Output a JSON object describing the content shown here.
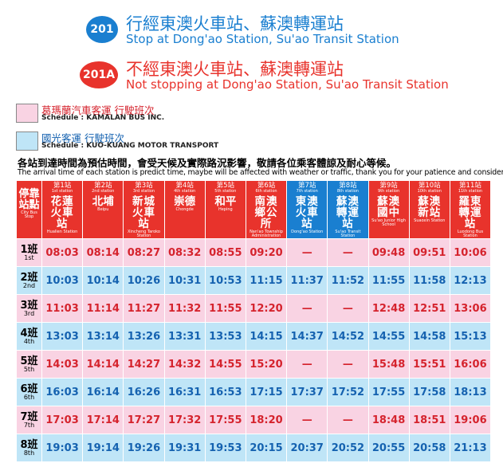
{
  "routes": [
    {
      "badge": "201",
      "zh": "行經東澳火車站、蘇澳轉運站",
      "en": "Stop at Dong'ao Station, Su'ao Transit Station",
      "color": "#1a7fd0"
    },
    {
      "badge": "201A",
      "zh": "不經東澳火車站、蘇澳轉運站",
      "en": "Not stopping at Dong'ao Station, Su'ao Transit Station",
      "color": "#e8332c"
    }
  ],
  "legend": [
    {
      "zh": "葛瑪蘭汽車客運 行駛班次",
      "en": "Schedule : KAMALAN BUS INC.",
      "color": "#f9d3e3",
      "text_color": "#d5232d"
    },
    {
      "zh": "國光客運 行駛班次",
      "en": "Schedule : KUO-KUANG MOTOR TRANSPORT",
      "color": "#bfe5f7",
      "text_color": "#1562b0"
    }
  ],
  "notice": {
    "zh": "各站到達時間為預估時間，會受天候及實際路況影響，敬請各位乘客體諒及耐心等候。",
    "en": "The arrival time of each station is predict time, maybe will be affected with weather or traffic, thank you for your patience and consideration."
  },
  "table": {
    "corner": {
      "zh": "停靠站點",
      "en": "City Bus Stop"
    },
    "stations": [
      {
        "stop": "第1站",
        "stop_en": "1st station",
        "zh": "花蓮火車站",
        "en": "Hualien Station",
        "color": "#e8332c"
      },
      {
        "stop": "第2站",
        "stop_en": "2nd station",
        "zh": "北埔",
        "en": "Beipu",
        "color": "#e8332c"
      },
      {
        "stop": "第3站",
        "stop_en": "3rd station",
        "zh": "新城火車站",
        "en": "Xincheng Taroko Station",
        "color": "#e8332c"
      },
      {
        "stop": "第4站",
        "stop_en": "4th station",
        "zh": "崇德",
        "en": "Chongde",
        "color": "#e8332c"
      },
      {
        "stop": "第5站",
        "stop_en": "5th station",
        "zh": "和平",
        "en": "Heping",
        "color": "#e8332c"
      },
      {
        "stop": "第6站",
        "stop_en": "6th station",
        "zh": "南澳鄉公所",
        "en": "Nan'ao Township Administration",
        "color": "#e8332c"
      },
      {
        "stop": "第7站",
        "stop_en": "7th station",
        "zh": "東澳火車站",
        "en": "Dong'ao Station",
        "color": "#1a7fd0"
      },
      {
        "stop": "第8站",
        "stop_en": "8th station",
        "zh": "蘇澳轉運站",
        "en": "Su'ao Transit Station",
        "color": "#1a7fd0"
      },
      {
        "stop": "第9站",
        "stop_en": "9th station",
        "zh": "蘇澳國中",
        "en": "Su'ao Junior High School",
        "color": "#e8332c"
      },
      {
        "stop": "第10站",
        "stop_en": "10th station",
        "zh": "蘇澳新站",
        "en": "Suaoxin Station",
        "color": "#e8332c"
      },
      {
        "stop": "第11站",
        "stop_en": "11th station",
        "zh": "羅東轉運站",
        "en": "Luodong Bus Station",
        "color": "#e8332c"
      }
    ],
    "rows": [
      {
        "zh": "1班",
        "en": "1st",
        "times": [
          "08:03",
          "08:14",
          "08:27",
          "08:32",
          "08:55",
          "09:20",
          "—",
          "—",
          "09:48",
          "09:51",
          "10:06"
        ]
      },
      {
        "zh": "2班",
        "en": "2nd",
        "times": [
          "10:03",
          "10:14",
          "10:26",
          "10:31",
          "10:53",
          "11:15",
          "11:37",
          "11:52",
          "11:55",
          "11:58",
          "12:13"
        ]
      },
      {
        "zh": "3班",
        "en": "3rd",
        "times": [
          "11:03",
          "11:14",
          "11:27",
          "11:32",
          "11:55",
          "12:20",
          "—",
          "—",
          "12:48",
          "12:51",
          "13:06"
        ]
      },
      {
        "zh": "4班",
        "en": "4th",
        "times": [
          "13:03",
          "13:14",
          "13:26",
          "13:31",
          "13:53",
          "14:15",
          "14:37",
          "14:52",
          "14:55",
          "14:58",
          "15:13"
        ]
      },
      {
        "zh": "5班",
        "en": "5th",
        "times": [
          "14:03",
          "14:14",
          "14:27",
          "14:32",
          "14:55",
          "15:20",
          "—",
          "—",
          "15:48",
          "15:51",
          "16:06"
        ]
      },
      {
        "zh": "6班",
        "en": "6th",
        "times": [
          "16:03",
          "16:14",
          "16:26",
          "16:31",
          "16:53",
          "17:15",
          "17:37",
          "17:52",
          "17:55",
          "17:58",
          "18:13"
        ]
      },
      {
        "zh": "7班",
        "en": "7th",
        "times": [
          "17:03",
          "17:14",
          "17:27",
          "17:32",
          "17:55",
          "18:20",
          "—",
          "—",
          "18:48",
          "18:51",
          "19:06"
        ]
      },
      {
        "zh": "8班",
        "en": "8th",
        "times": [
          "19:03",
          "19:14",
          "19:26",
          "19:31",
          "19:53",
          "20:15",
          "20:37",
          "20:52",
          "20:55",
          "20:58",
          "21:13"
        ]
      }
    ]
  }
}
